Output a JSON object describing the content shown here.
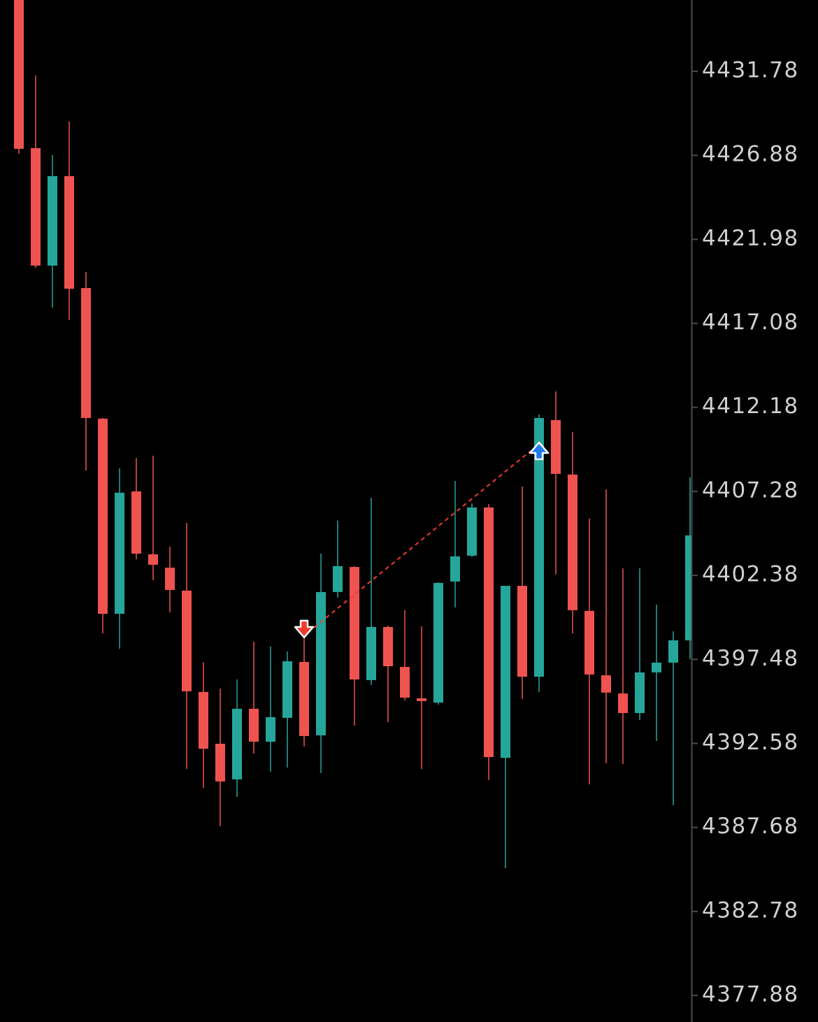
{
  "chart_data": {
    "type": "candlestick",
    "open": [
      4435.94,
      4427.3,
      4420.45,
      4425.67,
      4419.14,
      4411.52,
      4400.14,
      4407.28,
      4403.61,
      4402.83,
      4401.49,
      4395.58,
      4392.56,
      4390.48,
      4394.6,
      4392.68,
      4394.07,
      4397.33,
      4393.05,
      4401.41,
      4402.87,
      4396.27,
      4399.37,
      4397.04,
      4395.21,
      4394.96,
      4402.02,
      4403.53,
      4406.34,
      4391.74,
      4401.77,
      4396.47,
      4411.44,
      4408.26,
      4400.31,
      4396.55,
      4395.49,
      4394.35,
      4396.72,
      4397.29,
      4398.59
    ],
    "high": [
      4435.94,
      4431.54,
      4426.89,
      4428.85,
      4420.08,
      4411.56,
      4408.62,
      4409.23,
      4409.36,
      4404.06,
      4405.44,
      4397.29,
      4395.78,
      4396.31,
      4398.51,
      4398.23,
      4397.94,
      4398.76,
      4403.65,
      4405.57,
      4402.92,
      4406.91,
      4399.45,
      4400.35,
      4399.41,
      4401.98,
      4407.89,
      4406.58,
      4406.54,
      4401.77,
      4407.56,
      4411.76,
      4413.11,
      4410.74,
      4405.69,
      4407.4,
      4402.79,
      4402.79,
      4400.67,
      4399.12,
      4408.09
    ],
    "low": [
      4426.97,
      4420.32,
      4418.0,
      4417.27,
      4408.5,
      4399.0,
      4398.1,
      4403.32,
      4402.1,
      4400.22,
      4391.09,
      4389.99,
      4387.75,
      4389.46,
      4391.99,
      4390.93,
      4391.17,
      4392.4,
      4390.85,
      4401.08,
      4393.62,
      4395.98,
      4393.82,
      4395.09,
      4391.09,
      4394.84,
      4400.51,
      4403.45,
      4390.44,
      4385.3,
      4395.17,
      4395.58,
      4402.43,
      4399.0,
      4390.19,
      4391.42,
      4391.38,
      4393.95,
      4392.72,
      4388.97,
      4397.49
    ],
    "close": [
      4427.26,
      4420.45,
      4425.67,
      4419.1,
      4411.56,
      4400.14,
      4407.2,
      4403.65,
      4403.0,
      4401.53,
      4395.62,
      4392.27,
      4390.36,
      4394.6,
      4392.68,
      4394.11,
      4397.37,
      4393.01,
      4401.41,
      4402.92,
      4396.31,
      4399.37,
      4397.08,
      4395.25,
      4395.05,
      4401.94,
      4403.49,
      4406.34,
      4391.78,
      4401.77,
      4396.47,
      4411.56,
      4408.3,
      4400.35,
      4396.6,
      4395.54,
      4394.35,
      4396.72,
      4397.29,
      4398.59,
      4404.71
    ],
    "up_color": "#26a69a",
    "down_color": "#ef5350",
    "markers": [
      {
        "index": 17,
        "value": 4399.25,
        "direction": "down",
        "color": "#f23a2c"
      },
      {
        "index": 31,
        "value": 4409.64,
        "direction": "up",
        "color": "#1e7cf2"
      }
    ],
    "link_color": "#f23a2c",
    "ylim": [
      4376.33,
      4435.94
    ],
    "yticks": [
      4431.78,
      4426.88,
      4421.98,
      4417.08,
      4412.18,
      4407.28,
      4402.38,
      4397.48,
      4392.58,
      4387.68,
      4382.78,
      4377.88
    ]
  }
}
